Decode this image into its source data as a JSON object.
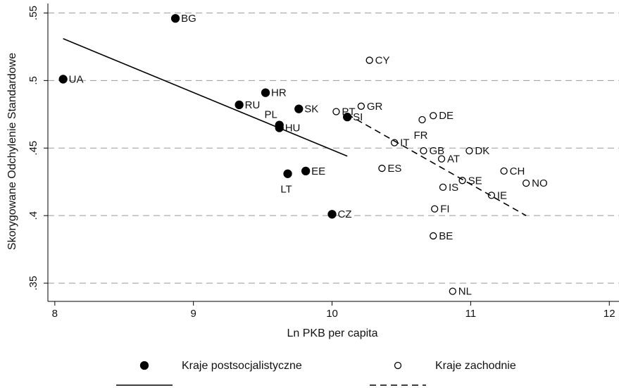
{
  "chart_data": {
    "type": "scatter",
    "xlabel": "Ln PKB per capita",
    "ylabel": "Skorygowane Odchylenie Standardowe",
    "xlim": [
      7.95,
      12.07
    ],
    "ylim": [
      0.3365,
      0.557
    ],
    "xticks": [
      8,
      9,
      10,
      11,
      12
    ],
    "yticks": [
      {
        "value": 0.35,
        "label": ".35"
      },
      {
        "value": 0.4,
        "label": ".4"
      },
      {
        "value": 0.45,
        "label": ".45"
      },
      {
        "value": 0.5,
        "label": ".5"
      },
      {
        "value": 0.55,
        "label": ".55"
      }
    ],
    "grid": true,
    "series": [
      {
        "type": "scatter",
        "name": "Kraje postsocjalistyczne",
        "color": "#000000",
        "marker": "filled",
        "labels": [
          "BG",
          "UA",
          "HR",
          "RU",
          "SK",
          "PL",
          "HU",
          "SI",
          "LT",
          "EE",
          "CZ"
        ],
        "x": [
          8.87,
          8.06,
          9.52,
          9.33,
          9.76,
          9.62,
          9.62,
          10.11,
          9.68,
          9.81,
          10.0
        ],
        "values": [
          0.546,
          0.501,
          0.491,
          0.482,
          0.479,
          0.467,
          0.465,
          0.473,
          0.431,
          0.433,
          0.401
        ]
      },
      {
        "type": "scatter",
        "name": "Kraje zachodnie",
        "color": "#000000",
        "marker": "hollow",
        "labels": [
          "CY",
          "PT",
          "GR",
          "DE",
          "FR",
          "IT",
          "GB",
          "AT",
          "DK",
          "ES",
          "CH",
          "SE",
          "NO",
          "IS",
          "IE",
          "FI",
          "BE",
          "NL"
        ],
        "x": [
          10.27,
          10.03,
          10.21,
          10.73,
          10.65,
          10.45,
          10.66,
          10.79,
          10.99,
          10.36,
          11.24,
          10.94,
          11.4,
          10.8,
          11.15,
          10.74,
          10.73,
          10.87
        ],
        "values": [
          0.515,
          0.477,
          0.481,
          0.474,
          0.471,
          0.454,
          0.448,
          0.442,
          0.448,
          0.435,
          0.433,
          0.426,
          0.424,
          0.421,
          0.415,
          0.405,
          0.385,
          0.344
        ]
      },
      {
        "type": "line",
        "color": "#000000",
        "style": "solid",
        "x": [
          8.06,
          10.11
        ],
        "values": [
          0.531,
          0.444
        ]
      },
      {
        "type": "line",
        "color": "#000000",
        "style": "dashed",
        "x": [
          10.11,
          11.4
        ],
        "values": [
          0.475,
          0.4
        ]
      }
    ]
  }
}
